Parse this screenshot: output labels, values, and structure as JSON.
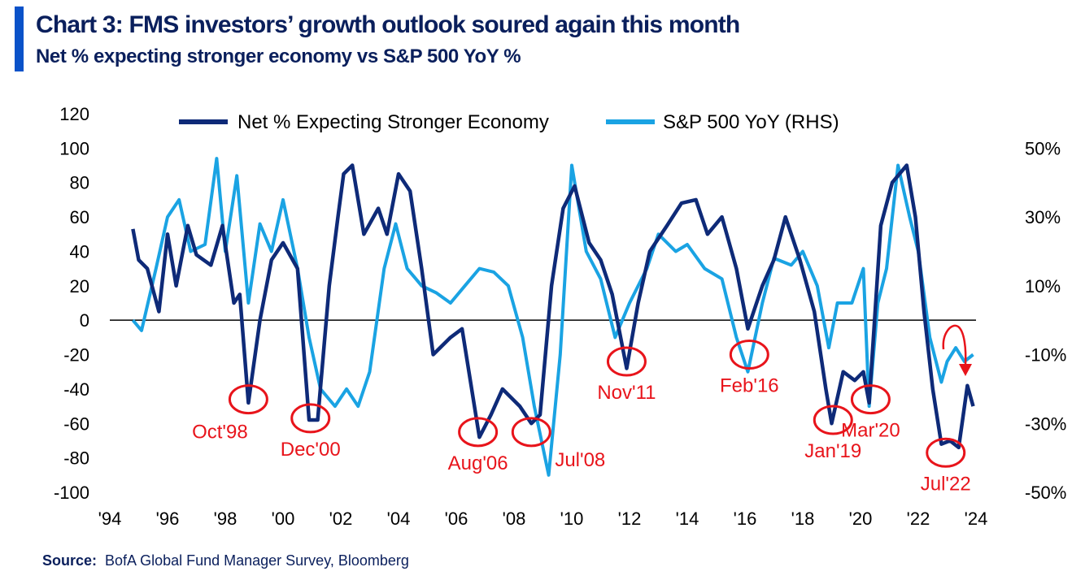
{
  "header": {
    "title": "Chart 3: FMS investors’ growth outlook  soured again this month",
    "subtitle": "Net % expecting stronger economy vs S&P 500 YoY %"
  },
  "footer": {
    "source_label": "Source:",
    "source_text": "BofA Global Fund Manager Survey, Bloomberg"
  },
  "colors": {
    "accent": "#0a52c9",
    "series_dark": "#0e2a78",
    "series_light": "#1aa3e3",
    "annotation": "#e8141b",
    "text": "#0a1f5c"
  },
  "chart_data": {
    "type": "line",
    "xlim": [
      1994,
      2024
    ],
    "x_ticks": [
      "'94",
      "'96",
      "'98",
      "'00",
      "'02",
      "'04",
      "'06",
      "'08",
      "'10",
      "'12",
      "'14",
      "'16",
      "'18",
      "'20",
      "'22",
      "'24"
    ],
    "y_left": {
      "lim": [
        -100,
        120
      ],
      "ticks": [
        "120",
        "100",
        "80",
        "60",
        "40",
        "20",
        "0",
        "-20",
        "-40",
        "-60",
        "-80",
        "-100"
      ]
    },
    "y_right": {
      "lim": [
        -50,
        60
      ],
      "ticks": [
        "50%",
        "30%",
        "10%",
        "-10%",
        "-30%",
        "-50%"
      ]
    },
    "legend": {
      "placement": "top"
    },
    "series": [
      {
        "name": "Net % Expecting Stronger Economy",
        "axis": "left",
        "points": [
          [
            1994.8,
            53
          ],
          [
            1995.0,
            35
          ],
          [
            1995.3,
            30
          ],
          [
            1995.7,
            5
          ],
          [
            1996.0,
            50
          ],
          [
            1996.3,
            20
          ],
          [
            1996.7,
            55
          ],
          [
            1997.0,
            38
          ],
          [
            1997.5,
            32
          ],
          [
            1997.9,
            55
          ],
          [
            1998.3,
            10
          ],
          [
            1998.5,
            15
          ],
          [
            1998.8,
            -48
          ],
          [
            1999.2,
            0
          ],
          [
            1999.6,
            35
          ],
          [
            2000.0,
            45
          ],
          [
            2000.5,
            30
          ],
          [
            2000.9,
            -58
          ],
          [
            2001.2,
            -58
          ],
          [
            2001.6,
            20
          ],
          [
            2001.9,
            60
          ],
          [
            2002.1,
            85
          ],
          [
            2002.4,
            90
          ],
          [
            2002.8,
            50
          ],
          [
            2003.3,
            65
          ],
          [
            2003.6,
            50
          ],
          [
            2004.0,
            85
          ],
          [
            2004.4,
            75
          ],
          [
            2004.8,
            30
          ],
          [
            2005.2,
            -20
          ],
          [
            2005.8,
            -10
          ],
          [
            2006.2,
            -5
          ],
          [
            2006.8,
            -68
          ],
          [
            2007.2,
            -55
          ],
          [
            2007.6,
            -40
          ],
          [
            2008.2,
            -50
          ],
          [
            2008.6,
            -60
          ],
          [
            2008.9,
            -55
          ],
          [
            2009.3,
            20
          ],
          [
            2009.7,
            65
          ],
          [
            2010.1,
            78
          ],
          [
            2010.6,
            45
          ],
          [
            2011.0,
            35
          ],
          [
            2011.4,
            15
          ],
          [
            2011.9,
            -28
          ],
          [
            2012.3,
            10
          ],
          [
            2012.7,
            40
          ],
          [
            2013.3,
            55
          ],
          [
            2013.8,
            68
          ],
          [
            2014.3,
            70
          ],
          [
            2014.7,
            50
          ],
          [
            2015.2,
            60
          ],
          [
            2015.7,
            30
          ],
          [
            2016.1,
            -5
          ],
          [
            2016.6,
            20
          ],
          [
            2017.0,
            35
          ],
          [
            2017.4,
            60
          ],
          [
            2017.9,
            35
          ],
          [
            2018.4,
            5
          ],
          [
            2018.8,
            -40
          ],
          [
            2019.0,
            -60
          ],
          [
            2019.4,
            -30
          ],
          [
            2019.8,
            -35
          ],
          [
            2020.1,
            -30
          ],
          [
            2020.3,
            -48
          ],
          [
            2020.7,
            55
          ],
          [
            2021.1,
            80
          ],
          [
            2021.6,
            90
          ],
          [
            2021.9,
            60
          ],
          [
            2022.2,
            5
          ],
          [
            2022.5,
            -40
          ],
          [
            2022.8,
            -72
          ],
          [
            2023.1,
            -70
          ],
          [
            2023.4,
            -74
          ],
          [
            2023.7,
            -38
          ],
          [
            2023.9,
            -50
          ]
        ]
      },
      {
        "name": "S&P 500 YoY (RHS)",
        "axis": "right",
        "points": [
          [
            1994.8,
            0
          ],
          [
            1995.1,
            -3
          ],
          [
            1995.6,
            15
          ],
          [
            1996.0,
            30
          ],
          [
            1996.4,
            35
          ],
          [
            1996.8,
            20
          ],
          [
            1997.3,
            22
          ],
          [
            1997.7,
            47
          ],
          [
            1998.0,
            20
          ],
          [
            1998.4,
            42
          ],
          [
            1998.8,
            5
          ],
          [
            1999.2,
            28
          ],
          [
            1999.6,
            20
          ],
          [
            2000.0,
            35
          ],
          [
            2000.5,
            15
          ],
          [
            2000.9,
            -5
          ],
          [
            2001.3,
            -20
          ],
          [
            2001.8,
            -25
          ],
          [
            2002.2,
            -20
          ],
          [
            2002.6,
            -25
          ],
          [
            2003.0,
            -15
          ],
          [
            2003.5,
            15
          ],
          [
            2003.9,
            28
          ],
          [
            2004.3,
            15
          ],
          [
            2004.8,
            10
          ],
          [
            2005.3,
            8
          ],
          [
            2005.8,
            5
          ],
          [
            2006.3,
            10
          ],
          [
            2006.8,
            15
          ],
          [
            2007.3,
            14
          ],
          [
            2007.8,
            10
          ],
          [
            2008.3,
            -5
          ],
          [
            2008.7,
            -25
          ],
          [
            2009.2,
            -45
          ],
          [
            2009.6,
            -10
          ],
          [
            2010.0,
            45
          ],
          [
            2010.5,
            20
          ],
          [
            2011.0,
            12
          ],
          [
            2011.5,
            -5
          ],
          [
            2012.0,
            5
          ],
          [
            2012.6,
            15
          ],
          [
            2013.0,
            25
          ],
          [
            2013.6,
            20
          ],
          [
            2014.0,
            22
          ],
          [
            2014.6,
            15
          ],
          [
            2015.2,
            12
          ],
          [
            2015.7,
            -5
          ],
          [
            2016.1,
            -15
          ],
          [
            2016.6,
            5
          ],
          [
            2017.0,
            18
          ],
          [
            2017.6,
            16
          ],
          [
            2018.0,
            20
          ],
          [
            2018.5,
            10
          ],
          [
            2018.9,
            -8
          ],
          [
            2019.2,
            5
          ],
          [
            2019.7,
            5
          ],
          [
            2020.1,
            15
          ],
          [
            2020.3,
            -25
          ],
          [
            2020.6,
            5
          ],
          [
            2020.9,
            15
          ],
          [
            2021.3,
            45
          ],
          [
            2021.7,
            30
          ],
          [
            2022.0,
            20
          ],
          [
            2022.4,
            -5
          ],
          [
            2022.8,
            -18
          ],
          [
            2023.0,
            -12
          ],
          [
            2023.3,
            -8
          ],
          [
            2023.6,
            -12
          ],
          [
            2023.9,
            -10
          ]
        ]
      }
    ],
    "annotations": [
      {
        "label": "Oct'98",
        "x": 1998.8,
        "y": -46,
        "label_pos": "below-left"
      },
      {
        "label": "Dec'00",
        "x": 2000.95,
        "y": -57,
        "label_pos": "below"
      },
      {
        "label": "Aug'06",
        "x": 2006.75,
        "y": -65,
        "label_pos": "below"
      },
      {
        "label": "Jul'08",
        "x": 2008.6,
        "y": -65,
        "label_pos": "below-right"
      },
      {
        "label": "Nov'11",
        "x": 2011.9,
        "y": -24,
        "label_pos": "below"
      },
      {
        "label": "Feb'16",
        "x": 2016.15,
        "y": -20,
        "label_pos": "below"
      },
      {
        "label": "Jan'19",
        "x": 2019.05,
        "y": -58,
        "label_pos": "below"
      },
      {
        "label": "Mar'20",
        "x": 2020.35,
        "y": -46,
        "label_pos": "below"
      },
      {
        "label": "Jul'22",
        "x": 2022.95,
        "y": -77,
        "label_pos": "below"
      }
    ]
  }
}
